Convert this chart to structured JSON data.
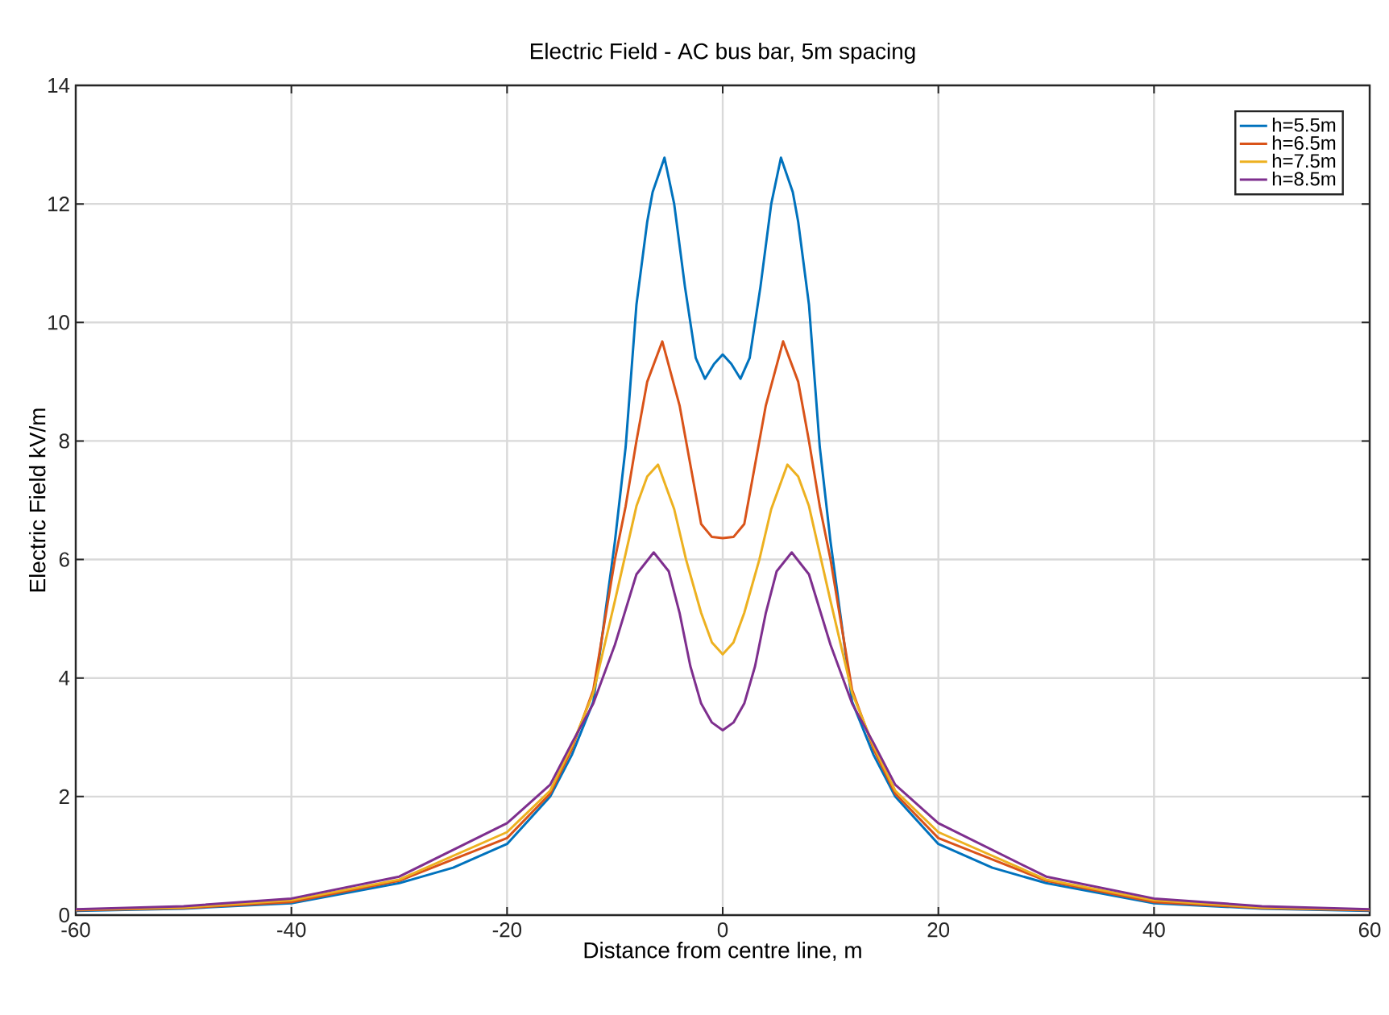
{
  "chart_data": {
    "type": "line",
    "title": "Electric Field -  AC bus bar, 5m spacing",
    "xlabel": "Distance from centre line, m",
    "ylabel": "Electric Field kV/m",
    "xlim": [
      -60,
      60
    ],
    "ylim": [
      0,
      14
    ],
    "xticks": [
      -60,
      -40,
      -20,
      0,
      20,
      40,
      60
    ],
    "yticks": [
      0,
      2,
      4,
      6,
      8,
      10,
      12,
      14
    ],
    "grid": true,
    "legend": "top right",
    "marker": "none",
    "line_style": "solid",
    "series": [
      {
        "name": "h=5.5m",
        "color": "#0072bd",
        "x": [
          -60,
          -50,
          -40,
          -30,
          -25,
          -20,
          -16,
          -14,
          -12,
          -10,
          -9,
          -8,
          -7,
          -6.5,
          -5.4,
          -4.5,
          -3.5,
          -2.5,
          -1.65,
          -0.8,
          0,
          0.8,
          1.65,
          2.5,
          3.5,
          4.5,
          5.4,
          6.5,
          7,
          8,
          9,
          10,
          12,
          14,
          16,
          20,
          25,
          30,
          40,
          50,
          60
        ],
        "values": [
          0.07,
          0.11,
          0.2,
          0.54,
          0.8,
          1.2,
          2.0,
          2.7,
          3.6,
          6.3,
          7.9,
          10.3,
          11.7,
          12.2,
          12.78,
          12.0,
          10.6,
          9.4,
          9.05,
          9.3,
          9.46,
          9.3,
          9.05,
          9.4,
          10.6,
          12.0,
          12.78,
          12.2,
          11.7,
          10.3,
          7.9,
          6.3,
          3.6,
          2.7,
          2.0,
          1.2,
          0.8,
          0.54,
          0.2,
          0.11,
          0.07
        ]
      },
      {
        "name": "h=6.5m",
        "color": "#d95319",
        "x": [
          -60,
          -50,
          -40,
          -30,
          -20,
          -16,
          -14,
          -12,
          -10,
          -9,
          -8,
          -7,
          -5.6,
          -4,
          -3,
          -2,
          -1,
          0,
          1,
          2,
          3,
          4,
          5.6,
          7,
          8,
          9,
          10,
          12,
          14,
          16,
          20,
          30,
          40,
          50,
          60
        ],
        "values": [
          0.08,
          0.12,
          0.22,
          0.58,
          1.3,
          2.05,
          2.8,
          3.8,
          6.0,
          6.9,
          8.0,
          9.0,
          9.68,
          8.6,
          7.6,
          6.6,
          6.38,
          6.36,
          6.38,
          6.6,
          7.6,
          8.6,
          9.68,
          9.0,
          8.0,
          6.9,
          6.0,
          3.8,
          2.8,
          2.05,
          1.3,
          0.58,
          0.22,
          0.12,
          0.08
        ]
      },
      {
        "name": "h=7.5m",
        "color": "#edb120",
        "x": [
          -60,
          -50,
          -40,
          -30,
          -20,
          -16,
          -14,
          -12,
          -10,
          -8,
          -7,
          -6,
          -4.5,
          -3.4,
          -2,
          -1,
          0,
          1,
          2,
          3.4,
          4.5,
          6,
          7,
          8,
          10,
          12,
          14,
          16,
          20,
          30,
          40,
          50,
          60
        ],
        "values": [
          0.09,
          0.13,
          0.25,
          0.6,
          1.4,
          2.1,
          2.85,
          3.75,
          5.3,
          6.9,
          7.4,
          7.6,
          6.85,
          6.0,
          5.1,
          4.6,
          4.4,
          4.6,
          5.1,
          6.0,
          6.85,
          7.6,
          7.4,
          6.9,
          5.3,
          3.75,
          2.85,
          2.1,
          1.4,
          0.6,
          0.25,
          0.13,
          0.09
        ]
      },
      {
        "name": "h=8.5m",
        "color": "#7e2f8e",
        "x": [
          -60,
          -50,
          -40,
          -30,
          -20,
          -16,
          -14,
          -12,
          -10,
          -8,
          -6.4,
          -5,
          -4,
          -3,
          -2,
          -1,
          0,
          1,
          2,
          3,
          4,
          5,
          6.4,
          8,
          10,
          12,
          14,
          16,
          20,
          30,
          40,
          50,
          60
        ],
        "values": [
          0.1,
          0.15,
          0.28,
          0.65,
          1.55,
          2.2,
          2.9,
          3.57,
          4.56,
          5.75,
          6.12,
          5.8,
          5.1,
          4.2,
          3.57,
          3.25,
          3.12,
          3.25,
          3.57,
          4.2,
          5.1,
          5.8,
          6.12,
          5.75,
          4.56,
          3.57,
          2.9,
          2.2,
          1.55,
          0.65,
          0.28,
          0.15,
          0.1
        ]
      }
    ]
  }
}
